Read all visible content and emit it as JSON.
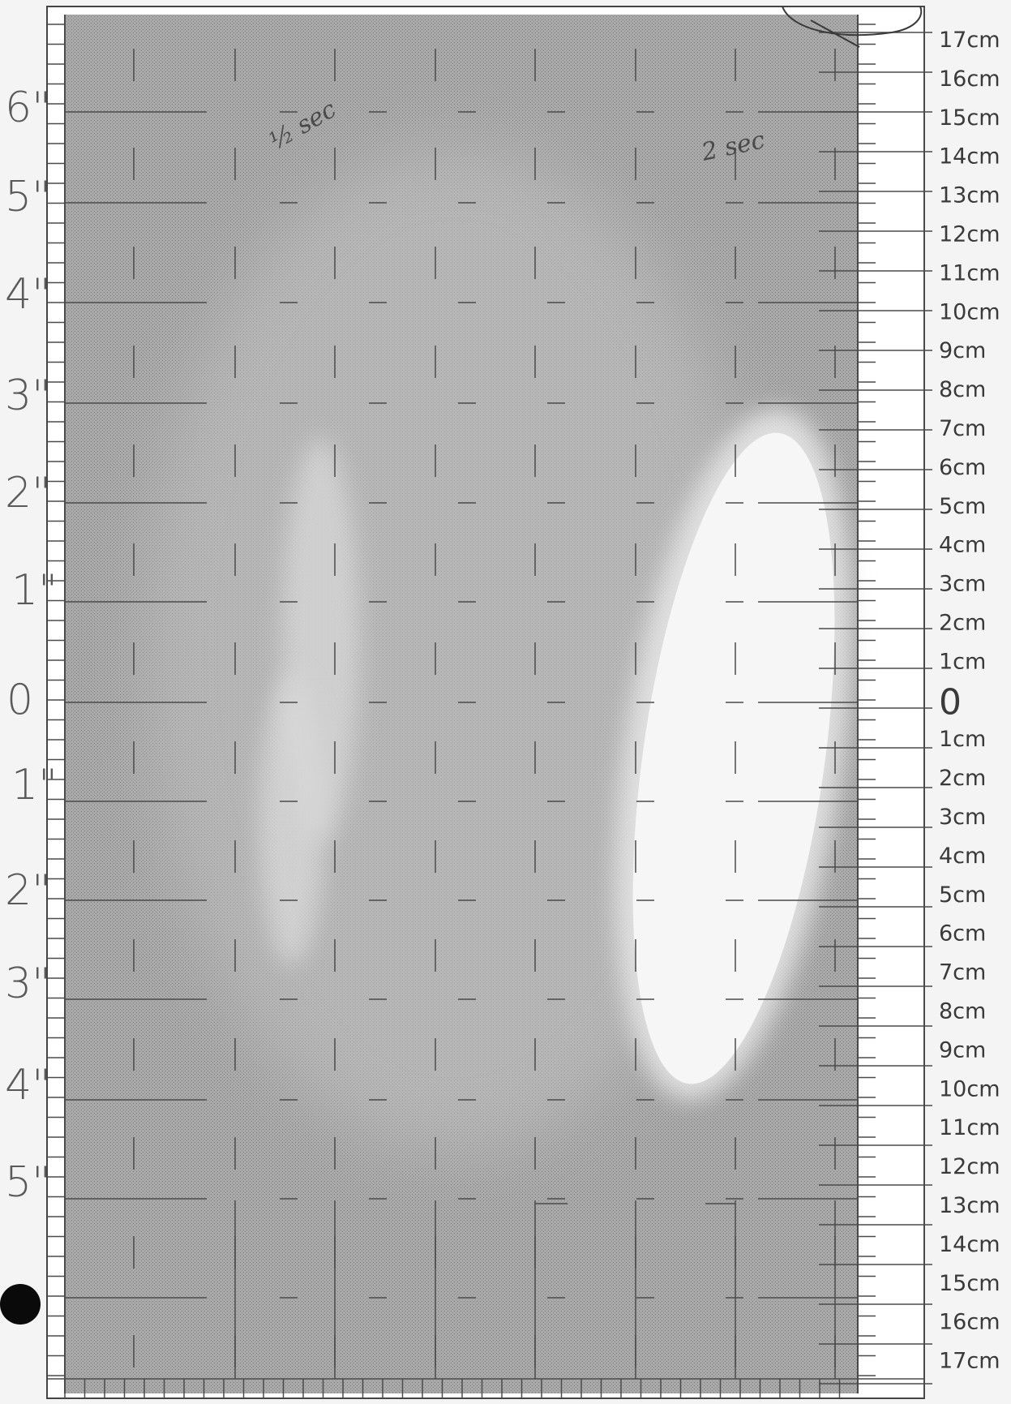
{
  "left_scale": {
    "labels": [
      "6\"",
      "5\"",
      "4\"",
      "3\"",
      "2\"",
      "1\"",
      "0",
      "1\"",
      "2\"",
      "3\"",
      "4\"",
      "5\""
    ]
  },
  "right_scale": {
    "labels": [
      "17cm",
      "16cm",
      "15cm",
      "14cm",
      "13cm",
      "12cm",
      "11cm",
      "10cm",
      "9cm",
      "8cm",
      "7cm",
      "6cm",
      "5cm",
      "4cm",
      "3cm",
      "2cm",
      "1cm",
      "0",
      "1cm",
      "2cm",
      "3cm",
      "4cm",
      "5cm",
      "6cm",
      "7cm",
      "8cm",
      "9cm",
      "10cm",
      "11cm",
      "12cm",
      "13cm",
      "14cm",
      "15cm",
      "16cm",
      "17cm"
    ]
  },
  "annotations": {
    "left_note": "½ sec",
    "right_note": "2 sec"
  }
}
